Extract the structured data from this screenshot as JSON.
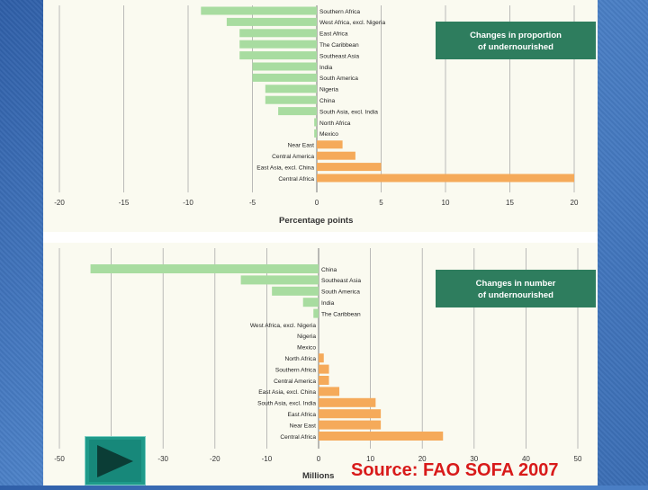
{
  "chart_data": [
    {
      "type": "bar",
      "orientation": "horizontal",
      "title": "Changes in proportion of undernourished",
      "title_lines": [
        "Changes in proportion",
        "of undernourished"
      ],
      "xlabel": "Percentage points",
      "xlim": [
        -20,
        20
      ],
      "x_ticks": [
        "-20",
        "-15",
        "-10",
        "-5",
        "0",
        "5",
        "10",
        "15",
        "20"
      ],
      "x_tick_values": [
        -20,
        -15,
        -10,
        -5,
        0,
        5,
        10,
        15,
        20
      ],
      "grid": true,
      "categories": [
        "Southern Africa",
        "West Africa, excl. Nigeria",
        "East Africa",
        "The Caribbean",
        "Southeast Asia",
        "India",
        "South America",
        "Nigeria",
        "China",
        "South Asia, excl. India",
        "North Africa",
        "Mexico",
        "Near East",
        "Central America",
        "East Asia, excl. China",
        "Central Africa"
      ],
      "values": [
        -9,
        -7,
        -6,
        -6,
        -6,
        -5,
        -5,
        -4,
        -4,
        -3,
        -0.2,
        -0.2,
        2,
        3,
        5,
        20
      ],
      "colors": {
        "negative": "#a8dca0",
        "positive": "#f5aa5a",
        "title_box": "#2e7d5e"
      }
    },
    {
      "type": "bar",
      "orientation": "horizontal",
      "title": "Changes in number of undernourished",
      "title_lines": [
        "Changes in number",
        "of undernourished"
      ],
      "xlabel": "Millions",
      "xlim": [
        -50,
        50
      ],
      "x_ticks": [
        "-50",
        "-40",
        "-30",
        "-20",
        "-10",
        "0",
        "10",
        "20",
        "30",
        "40",
        "50"
      ],
      "x_tick_values": [
        -50,
        -40,
        -30,
        -20,
        -10,
        0,
        10,
        20,
        30,
        40,
        50
      ],
      "grid": true,
      "categories": [
        "China",
        "Southeast Asia",
        "South America",
        "India",
        "The Caribbean",
        "West Africa, excl. Nigeria",
        "Nigeria",
        "Mexico",
        "North Africa",
        "Southern Africa",
        "Central America",
        "East Asia, excl. China",
        "South Asia, excl. India",
        "East Africa",
        "Near East",
        "Central Africa"
      ],
      "values": [
        -44,
        -15,
        -9,
        -3,
        -1,
        0,
        0,
        0,
        1,
        2,
        2,
        4,
        11,
        12,
        12,
        24
      ],
      "colors": {
        "negative": "#a8dca0",
        "positive": "#f5aa5a",
        "title_box": "#2e7d5e"
      }
    }
  ],
  "source_text": "Source: FAO SOFA 2007",
  "icons": {
    "play": "play-icon"
  }
}
